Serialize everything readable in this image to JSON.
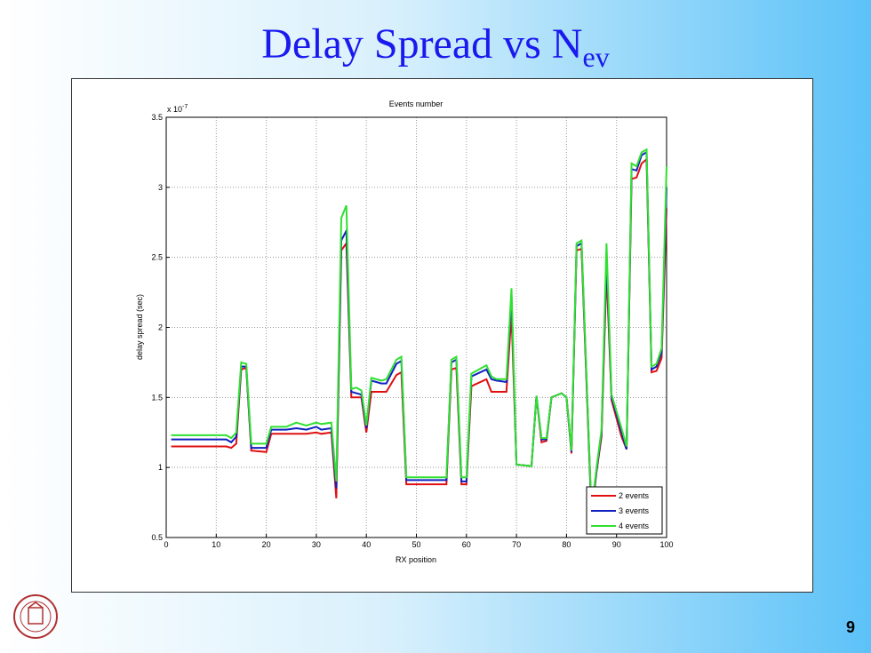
{
  "slide": {
    "title": "Delay Spread vs N",
    "title_subscript": "ev",
    "page_number": "9"
  },
  "chart_data": {
    "type": "line",
    "title": "Events number",
    "xlabel": "RX position",
    "ylabel": "delay spread (sec)",
    "y_scale_label": "x 10",
    "y_scale_exponent": "-7",
    "x": [
      1,
      12,
      13,
      14,
      15,
      16,
      17,
      20,
      21,
      24,
      26,
      28,
      30,
      31,
      33,
      34,
      35,
      36,
      37,
      38,
      39,
      40,
      41,
      43,
      44,
      46,
      47,
      48,
      56,
      57,
      58,
      59,
      60,
      61,
      64,
      65,
      66,
      68,
      69,
      70,
      73,
      74,
      75,
      76,
      77,
      79,
      80,
      81,
      82,
      83,
      85,
      86,
      87,
      88,
      89,
      90,
      91,
      92,
      93,
      94,
      95,
      96,
      97,
      98,
      99,
      100
    ],
    "series": [
      {
        "name": "2 events",
        "color": "#e01010",
        "values": [
          1.15,
          1.15,
          1.14,
          1.17,
          1.7,
          1.71,
          1.12,
          1.11,
          1.24,
          1.24,
          1.24,
          1.24,
          1.25,
          1.24,
          1.25,
          0.78,
          2.55,
          2.6,
          1.5,
          1.5,
          1.5,
          1.25,
          1.54,
          1.54,
          1.54,
          1.66,
          1.68,
          0.88,
          0.88,
          1.7,
          1.71,
          0.88,
          0.88,
          1.58,
          1.63,
          1.54,
          1.54,
          1.54,
          2.1,
          1.02,
          1.01,
          1.51,
          1.18,
          1.19,
          1.5,
          1.53,
          1.5,
          1.1,
          2.55,
          2.56,
          0.65,
          0.97,
          1.22,
          2.4,
          1.48,
          1.35,
          1.22,
          1.13,
          3.06,
          3.07,
          3.17,
          3.2,
          1.68,
          1.69,
          1.78,
          2.85
        ]
      },
      {
        "name": "3 events",
        "color": "#1020c0",
        "values": [
          1.2,
          1.2,
          1.18,
          1.22,
          1.72,
          1.72,
          1.14,
          1.14,
          1.27,
          1.27,
          1.28,
          1.27,
          1.29,
          1.27,
          1.28,
          0.85,
          2.62,
          2.69,
          1.54,
          1.53,
          1.52,
          1.28,
          1.62,
          1.6,
          1.6,
          1.74,
          1.76,
          0.91,
          0.91,
          1.75,
          1.77,
          0.9,
          0.9,
          1.65,
          1.7,
          1.63,
          1.62,
          1.61,
          2.22,
          1.02,
          1.01,
          1.51,
          1.2,
          1.2,
          1.5,
          1.53,
          1.5,
          1.11,
          2.58,
          2.6,
          0.67,
          0.98,
          1.25,
          2.5,
          1.5,
          1.38,
          1.25,
          1.13,
          3.13,
          3.12,
          3.23,
          3.25,
          1.7,
          1.72,
          1.82,
          3.0
        ]
      },
      {
        "name": "4 events",
        "color": "#30e030",
        "values": [
          1.23,
          1.23,
          1.21,
          1.25,
          1.75,
          1.74,
          1.17,
          1.17,
          1.29,
          1.29,
          1.32,
          1.3,
          1.32,
          1.31,
          1.32,
          0.9,
          2.78,
          2.87,
          1.56,
          1.57,
          1.55,
          1.3,
          1.64,
          1.62,
          1.63,
          1.77,
          1.79,
          0.93,
          0.93,
          1.77,
          1.79,
          0.93,
          0.93,
          1.67,
          1.73,
          1.65,
          1.63,
          1.63,
          2.28,
          1.02,
          1.01,
          1.51,
          1.21,
          1.21,
          1.5,
          1.53,
          1.5,
          1.12,
          2.6,
          2.62,
          0.69,
          1.0,
          1.27,
          2.6,
          1.52,
          1.4,
          1.28,
          1.15,
          3.17,
          3.15,
          3.25,
          3.27,
          1.72,
          1.74,
          1.85,
          3.15
        ]
      }
    ],
    "xlim": [
      0,
      100
    ],
    "xticks": [
      0,
      10,
      20,
      30,
      40,
      50,
      60,
      70,
      80,
      90,
      100
    ],
    "ylim": [
      0.5,
      3.5
    ],
    "yticks": [
      0.5,
      1,
      1.5,
      2,
      2.5,
      3,
      3.5
    ],
    "grid": true,
    "legend": "lower-right"
  }
}
